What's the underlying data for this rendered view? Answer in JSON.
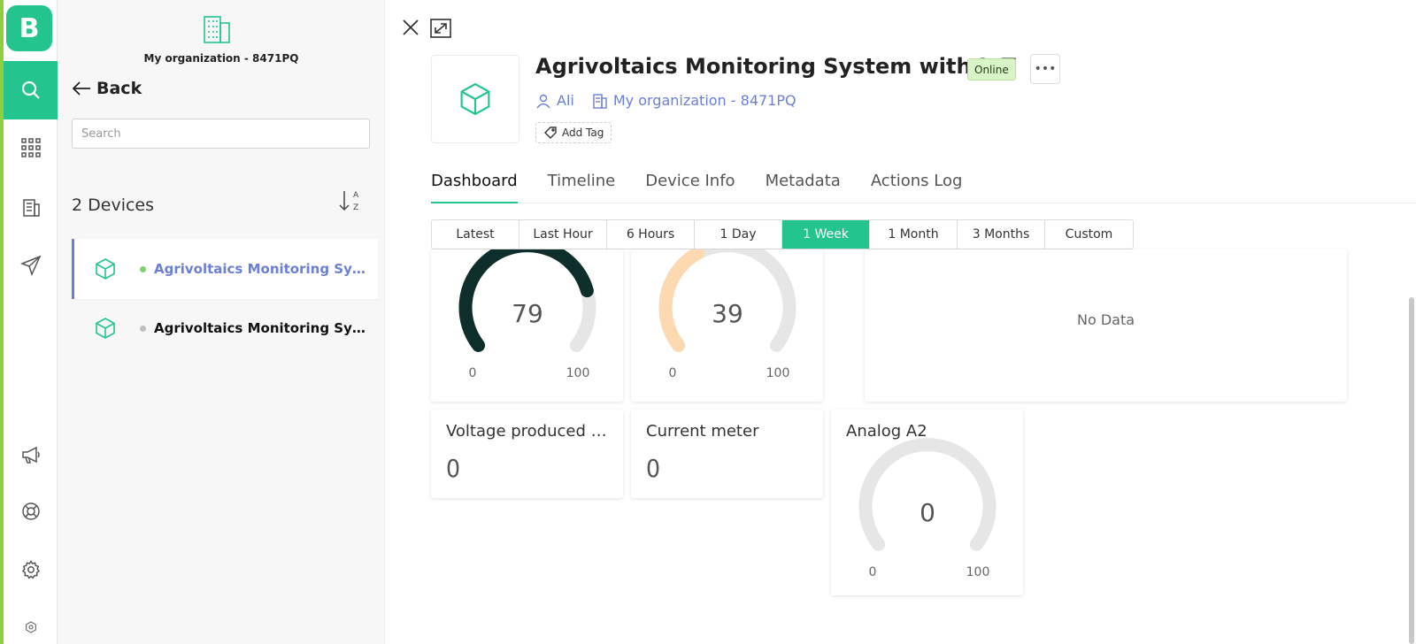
{
  "rail": {
    "logo_letter": "B",
    "items": [
      {
        "icon": "search-icon",
        "active": true
      },
      {
        "icon": "grid-icon",
        "active": false
      },
      {
        "icon": "building-icon",
        "active": false
      },
      {
        "icon": "send-icon",
        "active": false
      },
      {
        "icon": "megaphone-icon",
        "active": false
      },
      {
        "icon": "lifebuoy-icon",
        "active": false
      },
      {
        "icon": "gear-icon",
        "active": false
      }
    ]
  },
  "list": {
    "org_name": "My organization - 8471PQ",
    "back_label": "Back",
    "search_placeholder": "Search",
    "device_count": "2 Devices",
    "devices": [
      {
        "name": "Agrivoltaics Monitoring System with IoT",
        "online": true,
        "selected": true
      },
      {
        "name": "Agrivoltaics Monitoring System with IoT",
        "online": false,
        "selected": false
      }
    ]
  },
  "device": {
    "title": "Agrivoltaics Monitoring System with IoT",
    "status": "Online",
    "owner": "Ali",
    "organization": "My organization - 8471PQ",
    "add_tag_label": "Add Tag"
  },
  "tabs": [
    "Dashboard",
    "Timeline",
    "Device Info",
    "Metadata",
    "Actions Log"
  ],
  "active_tab": 0,
  "ranges": [
    "Latest",
    "Last Hour",
    "6 Hours",
    "1 Day",
    "1 Week",
    "1 Month",
    "3 Months",
    "Custom"
  ],
  "active_range": 4,
  "widgets": {
    "gauge1": {
      "value": "79",
      "min": "0",
      "max": "100",
      "color": "#0d2e2a"
    },
    "gauge2": {
      "value": "39",
      "min": "0",
      "max": "100",
      "color": "#fcd9b1"
    },
    "chart": {
      "no_data": "No Data"
    },
    "voltage": {
      "title": "Voltage produced by solar panel",
      "value": "0"
    },
    "current": {
      "title": "Current meter",
      "value": "0"
    },
    "analog": {
      "title": "Analog A2",
      "value": "0",
      "min": "0",
      "max": "100",
      "color": "#e6e6e6"
    }
  },
  "colors": {
    "accent": "#23c48e",
    "link": "#6b7fd6",
    "online": "#7ed36a",
    "offline": "#bfbfbf"
  }
}
